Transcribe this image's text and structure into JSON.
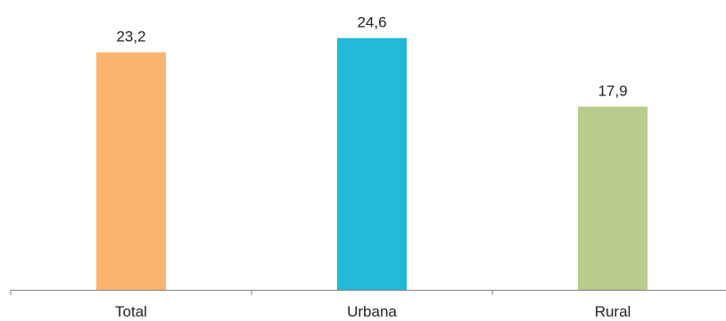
{
  "chart_data": {
    "type": "bar",
    "categories": [
      "Total",
      "Urbana",
      "Rural"
    ],
    "values": [
      23.2,
      24.6,
      17.9
    ],
    "value_labels": [
      "23,2",
      "24,6",
      "17,9"
    ],
    "title": "",
    "xlabel": "",
    "ylabel": "",
    "ylim": [
      0,
      26.4
    ],
    "grid": false,
    "legend": "none",
    "colors": [
      "#fbb56f",
      "#22b9d6",
      "#b8cc8b"
    ],
    "axis_color": "#7f7f7f"
  }
}
